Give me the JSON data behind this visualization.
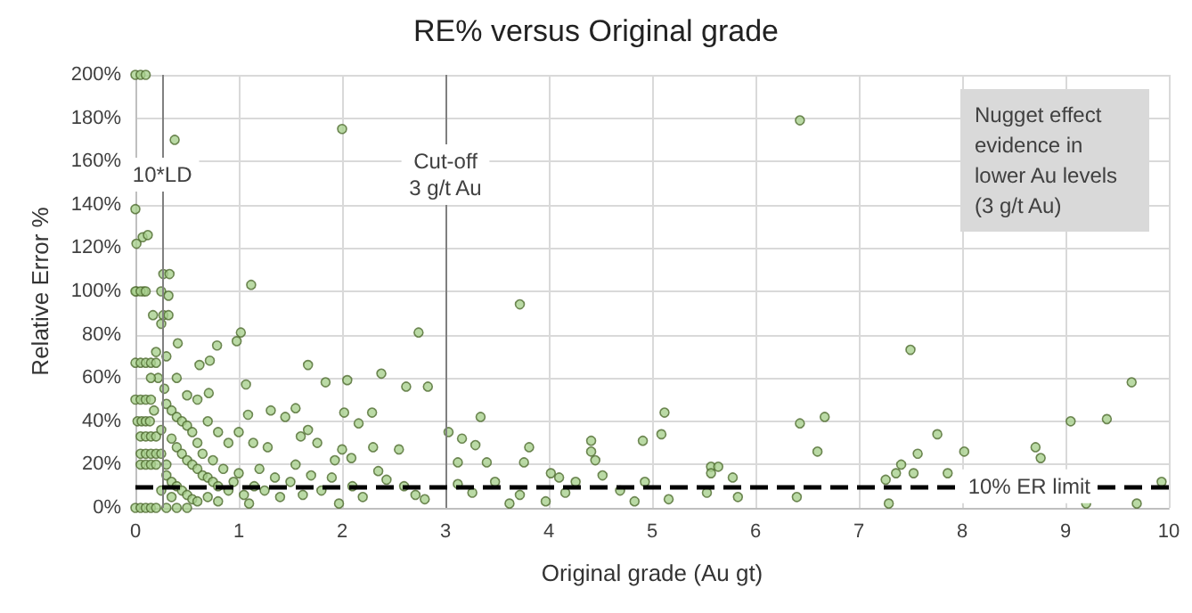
{
  "chart_data": {
    "type": "scatter",
    "title": "RE% versus Original grade",
    "xlabel": "Original grade (Au gt)",
    "ylabel": "Relative Error %",
    "x": [
      0,
      0.05,
      0.1,
      0.38,
      2.0,
      0,
      0.01,
      0.07,
      0.12,
      0.27,
      0.33,
      1.12,
      0.01,
      0.08,
      0.25,
      0.32,
      1.02,
      0.98,
      2.74,
      0.79,
      0.17,
      0.27,
      0.32,
      0.41,
      0.62,
      0.72,
      1.07,
      1.67,
      1.84,
      2.05,
      2.38,
      2.62,
      2.83,
      0.71,
      1.09,
      1.31,
      2.02,
      2.29,
      1.55,
      1.45,
      1.6,
      1.67,
      1.76,
      2.16,
      1.0,
      1.14,
      1.28,
      2.0,
      2.09,
      1.93,
      2.3,
      2.55,
      1.1,
      1.62,
      1.97,
      2.43,
      2.71,
      0,
      0.05,
      0.1,
      0.15,
      0.2,
      0.3,
      0.4,
      0.5,
      0,
      0.05,
      0.1,
      0.15,
      0.2,
      0,
      0.05,
      0.1,
      0,
      0.05,
      0.1,
      0.15,
      0.02,
      0.06,
      0.1,
      0.14,
      0.05,
      0.1,
      0.15,
      0.2,
      0.05,
      0.1,
      0.15,
      0.2,
      0.25,
      0.05,
      0.1,
      0.15,
      0.2,
      0.3,
      0.22,
      0.28,
      0.18,
      0.3,
      0.35,
      0.4,
      0.45,
      0.5,
      0.55,
      0.6,
      0.25,
      0.35,
      0.4,
      0.45,
      0.5,
      0.55,
      0.6,
      0.65,
      0.7,
      0.75,
      0.8,
      0.3,
      0.35,
      0.4,
      0.45,
      0.5,
      0.55,
      0.6,
      0.7,
      0.8,
      0.9,
      0.95,
      1.0,
      1.05,
      1.15,
      1.2,
      1.25,
      1.35,
      1.4,
      1.5,
      1.55,
      1.7,
      1.8,
      1.9,
      2.1,
      2.2,
      2.35,
      2.6,
      2.8,
      0.3,
      0.2,
      0.25,
      0.15,
      0.4,
      0.5,
      0.6,
      0.7,
      0.8,
      0.9,
      0.35,
      0.25,
      0.65,
      0.75,
      0.85,
      6.43,
      3.72,
      5.12,
      3.34,
      6.43,
      6.67,
      6.6,
      5.09,
      4.91,
      4.41,
      4.41,
      4.45,
      3.81,
      3.76,
      3.29,
      3.16,
      3.03,
      3.12,
      3.4,
      4.02,
      4.1,
      4.26,
      4.52,
      3.48,
      3.12,
      3.26,
      3.62,
      3.72,
      3.97,
      4.16,
      4.69,
      4.83,
      4.93,
      5.16,
      5.53,
      5.57,
      5.64,
      5.57,
      5.78,
      5.83,
      6.4,
      7.5,
      9.64,
      9.05,
      9.4,
      7.76,
      8.02,
      7.57,
      8.71,
      8.76,
      7.41,
      7.36,
      7.26,
      7.53,
      7.86,
      9.93,
      7.29,
      9.2,
      9.69
    ],
    "values": [
      200,
      200,
      200,
      170,
      175,
      138,
      122,
      125,
      126,
      108,
      108,
      103,
      100,
      100,
      100,
      98,
      81,
      77,
      81,
      75,
      89,
      89,
      89,
      76,
      66,
      68,
      57,
      66,
      58,
      59,
      62,
      56,
      56,
      53,
      43,
      45,
      44,
      44,
      46,
      42,
      33,
      36,
      30,
      39,
      35,
      30,
      28,
      27,
      23,
      22,
      28,
      27,
      2,
      6,
      2,
      13,
      6,
      0,
      0,
      0,
      0,
      0,
      0,
      0,
      0,
      67,
      67,
      67,
      67,
      67,
      100,
      100,
      100,
      50,
      50,
      50,
      50,
      40,
      40,
      40,
      40,
      33,
      33,
      33,
      33,
      25,
      25,
      25,
      25,
      25,
      20,
      20,
      20,
      20,
      20,
      60,
      55,
      45,
      48,
      45,
      42,
      40,
      38,
      35,
      30,
      36,
      32,
      28,
      25,
      22,
      20,
      18,
      15,
      14,
      12,
      10,
      15,
      12,
      10,
      8,
      6,
      4,
      3,
      5,
      3,
      8,
      12,
      16,
      6,
      10,
      18,
      8,
      14,
      5,
      12,
      20,
      15,
      8,
      14,
      10,
      5,
      17,
      10,
      4,
      70,
      72,
      85,
      60,
      60,
      52,
      50,
      40,
      35,
      30,
      5,
      8,
      25,
      22,
      18,
      179,
      94,
      44,
      42,
      39,
      42,
      26,
      34,
      31,
      31,
      26,
      22,
      28,
      21,
      29,
      32,
      35,
      21,
      21,
      16,
      14,
      12,
      15,
      12,
      11,
      7,
      2,
      6,
      3,
      7,
      8,
      3,
      12,
      4,
      7,
      19,
      19,
      16,
      14,
      5,
      5,
      73,
      58,
      40,
      41,
      34,
      26,
      25,
      28,
      23,
      20,
      16,
      13,
      16,
      16,
      12,
      2,
      2,
      2
    ],
    "color": "#a9d18e",
    "marker": "circle",
    "grid": true,
    "xlim": [
      0,
      10
    ],
    "xticks": [
      0,
      1,
      2,
      3,
      4,
      5,
      6,
      7,
      8,
      9,
      10
    ],
    "ylim": [
      0,
      200
    ],
    "yticks": [
      {
        "value": 0,
        "label": "0%"
      },
      {
        "value": 20,
        "label": "20%"
      },
      {
        "value": 40,
        "label": "40%"
      },
      {
        "value": 60,
        "label": "60%"
      },
      {
        "value": 80,
        "label": "80%"
      },
      {
        "value": 100,
        "label": "100%"
      },
      {
        "value": 120,
        "label": "120%"
      },
      {
        "value": 140,
        "label": "140%"
      },
      {
        "value": 160,
        "label": "160%"
      },
      {
        "value": 180,
        "label": "180%"
      },
      {
        "value": 200,
        "label": "200%"
      }
    ],
    "ref_lines": [
      {
        "axis": "x",
        "value": 0.26,
        "label": "10*LD",
        "color": "#808080",
        "line_style": "solid"
      },
      {
        "axis": "x",
        "value": 3,
        "label": "Cut-off\n3 g/t Au",
        "color": "#808080",
        "line_style": "solid"
      },
      {
        "axis": "y",
        "value": 10,
        "label": "10% ER limit",
        "color": "#000000",
        "line_style": "dashed"
      }
    ],
    "annotations": [
      "Nugget effect evidence in lower Au levels (3 g/t Au)"
    ]
  }
}
